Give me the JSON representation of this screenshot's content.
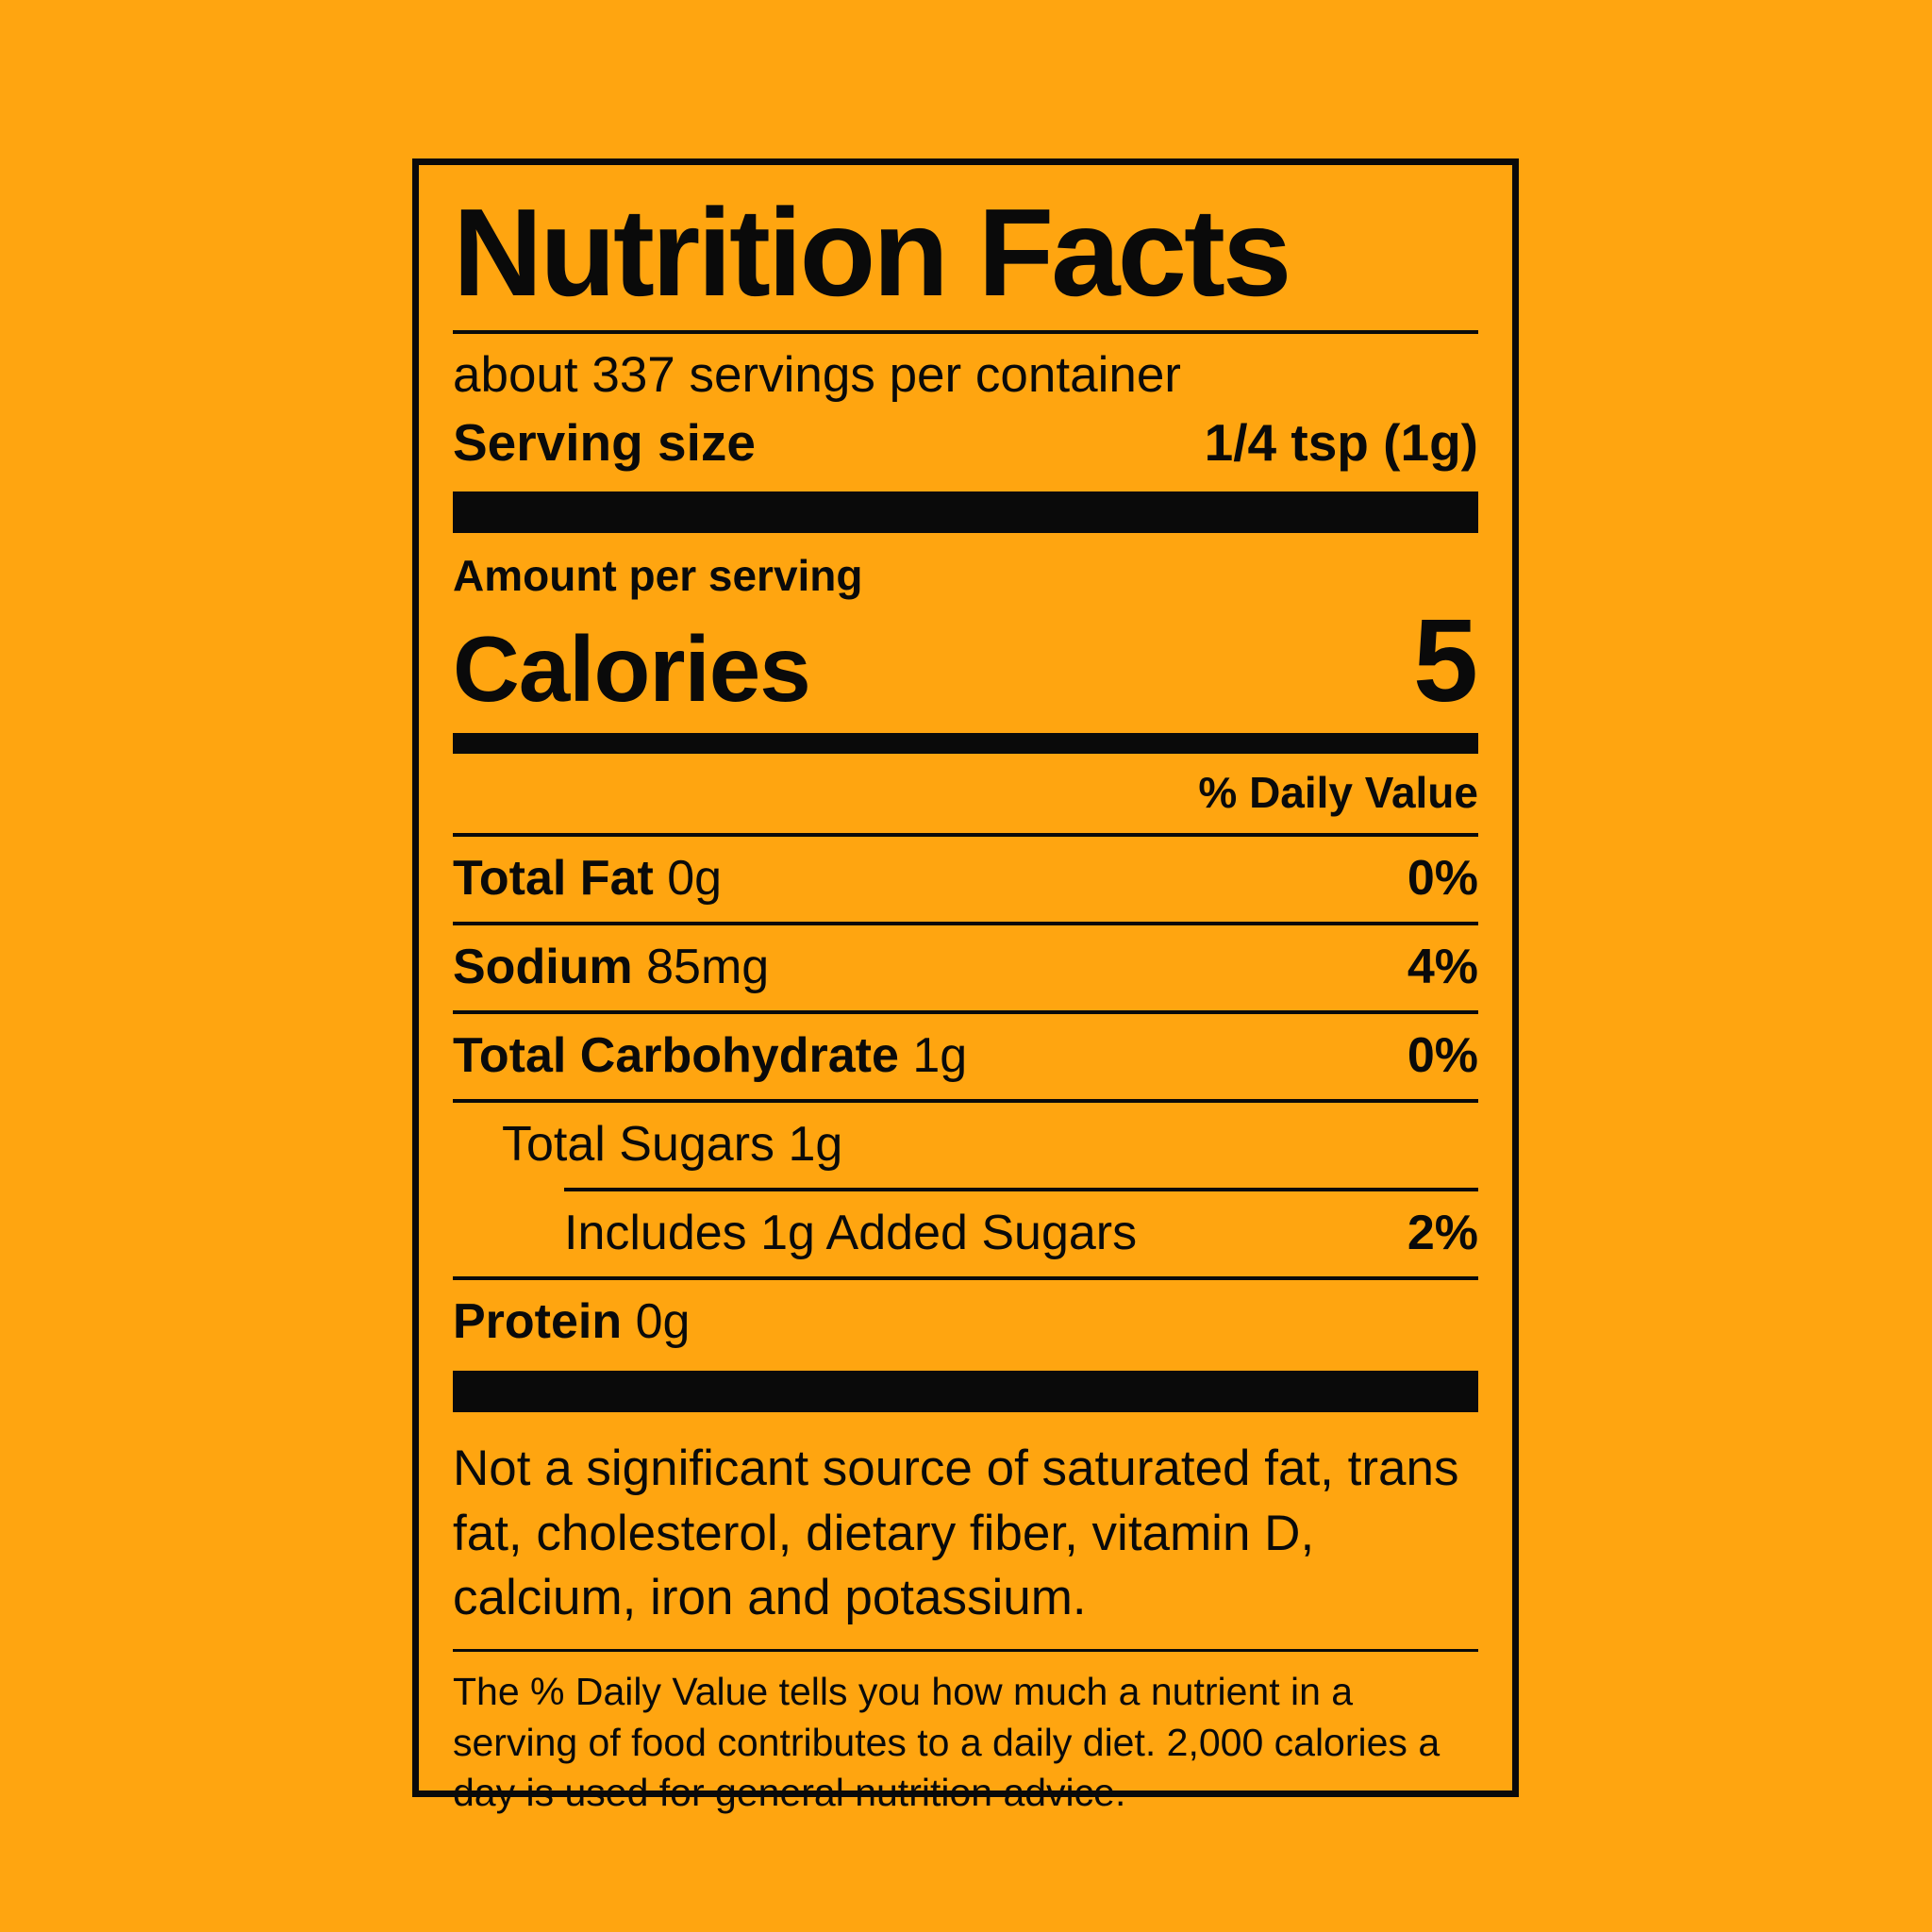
{
  "colors": {
    "background": "#FFA510",
    "ink": "#0A0A0A"
  },
  "label": {
    "title": "Nutrition Facts",
    "servings_per_container": "about 337 servings per container",
    "serving_size_label": "Serving size",
    "serving_size_value": "1/4 tsp (1g)",
    "amount_per_serving": "Amount per serving",
    "calories_label": "Calories",
    "calories_value": "5",
    "daily_value_header": "% Daily Value",
    "nutrients": [
      {
        "name": "Total Fat",
        "amount": "0g",
        "dv": "0%"
      },
      {
        "name": "Sodium",
        "amount": "85mg",
        "dv": "4%"
      },
      {
        "name": "Total Carbohydrate",
        "amount": "1g",
        "dv": "0%"
      }
    ],
    "total_sugars": "Total Sugars 1g",
    "added_sugars": "Includes 1g Added Sugars",
    "added_sugars_dv": "2%",
    "protein_name": "Protein",
    "protein_amount": "0g",
    "not_significant_note": "Not a significant source of saturated fat, trans fat, cholesterol, dietary fiber, vitamin D, calcium, iron and potassium.",
    "footnote": "The % Daily Value tells you how much a nutrient in a serving of food contributes to a daily diet. 2,000 calories a day is used for general nutrition advice."
  }
}
